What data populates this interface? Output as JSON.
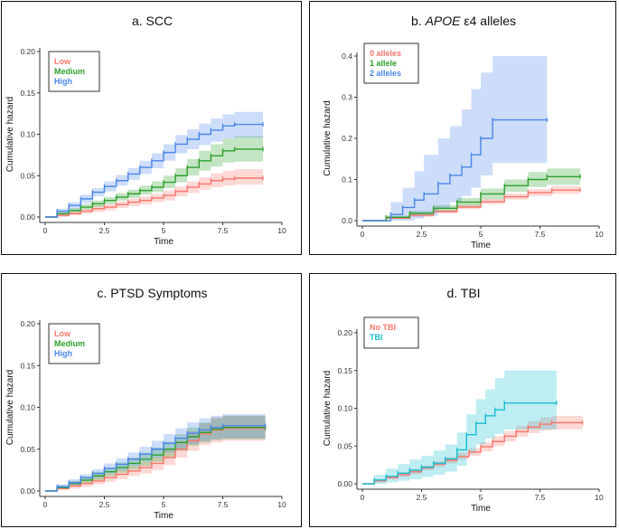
{
  "figure": {
    "chart_data": [
      {
        "type": "line",
        "subtype": "cumulative-hazard-step",
        "title": "a. SCC",
        "xlabel": "Time",
        "ylabel": "Cumulative hazard",
        "xlim": [
          0,
          10
        ],
        "ylim": [
          0,
          0.2
        ],
        "xticks": [
          0,
          2.5,
          5,
          7.5,
          10
        ],
        "xtick_labels": [
          "0",
          "2.5",
          "5",
          "7.5",
          "10"
        ],
        "yticks": [
          0,
          0.05,
          0.1,
          0.15,
          0.2
        ],
        "ytick_labels": [
          "0.00",
          "0.05",
          "0.10",
          "0.15",
          "0.20"
        ],
        "legend": "top-left",
        "grid": false,
        "series": [
          {
            "name": "Low",
            "color": "#f8766d",
            "x": [
              0,
              0.5,
              1,
              1.5,
              2,
              2.5,
              3,
              3.5,
              4,
              4.5,
              5,
              5.5,
              6,
              6.5,
              7,
              7.5,
              8,
              9.2
            ],
            "y": [
              0,
              0.002,
              0.004,
              0.007,
              0.01,
              0.012,
              0.015,
              0.018,
              0.02,
              0.023,
              0.026,
              0.031,
              0.036,
              0.04,
              0.044,
              0.046,
              0.047,
              0.047
            ],
            "ci_low": [
              0,
              0,
              0.002,
              0.004,
              0.006,
              0.008,
              0.011,
              0.013,
              0.015,
              0.018,
              0.02,
              0.025,
              0.029,
              0.033,
              0.036,
              0.038,
              0.039,
              0.039
            ],
            "ci_high": [
              0,
              0.004,
              0.007,
              0.01,
              0.014,
              0.016,
              0.019,
              0.022,
              0.025,
              0.028,
              0.032,
              0.037,
              0.043,
              0.048,
              0.053,
              0.056,
              0.058,
              0.058
            ]
          },
          {
            "name": "Medium",
            "color": "#2ca02c",
            "x": [
              0,
              0.5,
              1,
              1.5,
              2,
              2.5,
              3,
              3.5,
              4,
              4.5,
              5,
              5.5,
              6,
              6.5,
              7,
              7.5,
              8,
              9.2
            ],
            "y": [
              0,
              0.004,
              0.008,
              0.012,
              0.016,
              0.02,
              0.024,
              0.028,
              0.032,
              0.036,
              0.042,
              0.05,
              0.06,
              0.068,
              0.074,
              0.08,
              0.082,
              0.082
            ],
            "ci_low": [
              0,
              0.002,
              0.005,
              0.009,
              0.012,
              0.016,
              0.02,
              0.023,
              0.027,
              0.03,
              0.035,
              0.042,
              0.05,
              0.056,
              0.061,
              0.066,
              0.067,
              0.067
            ],
            "ci_high": [
              0,
              0.006,
              0.011,
              0.016,
              0.02,
              0.024,
              0.029,
              0.033,
              0.038,
              0.043,
              0.05,
              0.059,
              0.07,
              0.08,
              0.088,
              0.095,
              0.098,
              0.098
            ]
          },
          {
            "name": "High",
            "color": "#4a86e8",
            "x": [
              0,
              0.5,
              1,
              1.5,
              2,
              2.5,
              3,
              3.5,
              4,
              4.5,
              5,
              5.5,
              6,
              6.5,
              7,
              7.5,
              8,
              9.2
            ],
            "y": [
              0,
              0.007,
              0.014,
              0.022,
              0.03,
              0.037,
              0.044,
              0.052,
              0.06,
              0.068,
              0.078,
              0.088,
              0.094,
              0.1,
              0.105,
              0.11,
              0.112,
              0.112
            ],
            "ci_low": [
              0,
              0.004,
              0.01,
              0.017,
              0.025,
              0.031,
              0.038,
              0.045,
              0.052,
              0.059,
              0.068,
              0.077,
              0.082,
              0.087,
              0.091,
              0.095,
              0.096,
              0.096
            ],
            "ci_high": [
              0,
              0.01,
              0.018,
              0.027,
              0.035,
              0.043,
              0.051,
              0.059,
              0.068,
              0.077,
              0.088,
              0.099,
              0.106,
              0.113,
              0.119,
              0.124,
              0.127,
              0.127
            ]
          }
        ]
      },
      {
        "type": "line",
        "subtype": "cumulative-hazard-step",
        "title_prefix": "b. ",
        "title_italic": "APOE",
        "title_suffix": " ε4 alleles",
        "xlabel": "Time",
        "ylabel": "Cumulative hazard",
        "xlim": [
          0,
          10
        ],
        "ylim": [
          0,
          0.4
        ],
        "xticks": [
          0,
          2.5,
          5,
          7.5,
          10
        ],
        "xtick_labels": [
          "0",
          "2.5",
          "5",
          "7.5",
          "10"
        ],
        "yticks": [
          0,
          0.1,
          0.2,
          0.3,
          0.4
        ],
        "ytick_labels": [
          "0.0",
          "0.1",
          "0.2",
          "0.3",
          "0.4"
        ],
        "legend": "top-left",
        "grid": false,
        "series": [
          {
            "name": "0 alleles",
            "color": "#f8766d",
            "x": [
              0,
              1,
              2,
              3,
              4,
              5,
              6,
              7,
              8,
              9.2
            ],
            "y": [
              0,
              0.006,
              0.013,
              0.022,
              0.033,
              0.046,
              0.058,
              0.068,
              0.074,
              0.075
            ],
            "ci_low": [
              0,
              0.004,
              0.009,
              0.018,
              0.028,
              0.04,
              0.051,
              0.06,
              0.065,
              0.066
            ],
            "ci_high": [
              0,
              0.008,
              0.017,
              0.027,
              0.039,
              0.053,
              0.066,
              0.077,
              0.084,
              0.085
            ]
          },
          {
            "name": "1 allele",
            "color": "#2ca02c",
            "x": [
              0,
              1,
              2,
              3,
              4,
              5,
              6,
              7,
              7.8,
              9.2
            ],
            "y": [
              0,
              0.008,
              0.018,
              0.03,
              0.045,
              0.065,
              0.085,
              0.1,
              0.107,
              0.107
            ],
            "ci_low": [
              0,
              0.004,
              0.012,
              0.022,
              0.035,
              0.052,
              0.07,
              0.082,
              0.087,
              0.087
            ],
            "ci_high": [
              0,
              0.012,
              0.024,
              0.038,
              0.055,
              0.078,
              0.1,
              0.118,
              0.127,
              0.127
            ]
          },
          {
            "name": "2 alleles",
            "color": "#4a86e8",
            "x": [
              0,
              1.2,
              1.7,
              2.2,
              2.6,
              3.2,
              3.7,
              4.2,
              4.6,
              5.0,
              5.5,
              7.8
            ],
            "y": [
              0,
              0.015,
              0.032,
              0.05,
              0.065,
              0.09,
              0.11,
              0.13,
              0.16,
              0.2,
              0.245,
              0.245
            ],
            "ci_low": [
              0,
              0,
              0,
              0.005,
              0.012,
              0.03,
              0.045,
              0.06,
              0.08,
              0.11,
              0.14,
              0.14
            ],
            "ci_high": [
              0,
              0.045,
              0.08,
              0.12,
              0.16,
              0.2,
              0.23,
              0.27,
              0.32,
              0.36,
              0.4,
              0.4
            ]
          }
        ]
      },
      {
        "type": "line",
        "subtype": "cumulative-hazard-step",
        "title": "c. PTSD Symptoms",
        "xlabel": "Time",
        "ylabel": "Cumulative hazard",
        "xlim": [
          0,
          10
        ],
        "ylim": [
          0,
          0.2
        ],
        "xticks": [
          0,
          2.5,
          5,
          7.5,
          10
        ],
        "xtick_labels": [
          "0",
          "2.5",
          "5",
          "7.5",
          "10"
        ],
        "yticks": [
          0,
          0.05,
          0.1,
          0.15,
          0.2
        ],
        "ytick_labels": [
          "0.00",
          "0.05",
          "0.10",
          "0.15",
          "0.20"
        ],
        "legend": "top-left",
        "grid": false,
        "series": [
          {
            "name": "Low",
            "color": "#f8766d",
            "x": [
              0,
              0.5,
              1,
              1.5,
              2,
              2.5,
              3,
              3.5,
              4,
              4.5,
              5,
              5.5,
              6,
              6.5,
              7,
              7.5,
              9.3
            ],
            "y": [
              0,
              0.003,
              0.006,
              0.009,
              0.012,
              0.016,
              0.02,
              0.024,
              0.028,
              0.033,
              0.04,
              0.05,
              0.06,
              0.068,
              0.073,
              0.075,
              0.075
            ],
            "ci_low": [
              0,
              0.001,
              0.003,
              0.005,
              0.008,
              0.011,
              0.014,
              0.018,
              0.021,
              0.025,
              0.031,
              0.04,
              0.048,
              0.055,
              0.058,
              0.06,
              0.06
            ],
            "ci_high": [
              0,
              0.006,
              0.009,
              0.013,
              0.017,
              0.021,
              0.026,
              0.03,
              0.035,
              0.041,
              0.049,
              0.06,
              0.072,
              0.081,
              0.088,
              0.09,
              0.09
            ]
          },
          {
            "name": "Medium",
            "color": "#2ca02c",
            "x": [
              0,
              0.5,
              1,
              1.5,
              2,
              2.5,
              3,
              3.5,
              4,
              4.5,
              5,
              5.5,
              6,
              6.5,
              7,
              7.5,
              9.3
            ],
            "y": [
              0,
              0.004,
              0.009,
              0.013,
              0.018,
              0.023,
              0.028,
              0.033,
              0.038,
              0.043,
              0.05,
              0.058,
              0.065,
              0.07,
              0.074,
              0.076,
              0.076
            ],
            "ci_low": [
              0,
              0.002,
              0.006,
              0.009,
              0.013,
              0.018,
              0.022,
              0.026,
              0.03,
              0.035,
              0.041,
              0.048,
              0.054,
              0.058,
              0.061,
              0.062,
              0.062
            ],
            "ci_high": [
              0,
              0.007,
              0.012,
              0.017,
              0.023,
              0.028,
              0.034,
              0.04,
              0.046,
              0.052,
              0.059,
              0.068,
              0.076,
              0.082,
              0.087,
              0.09,
              0.09
            ]
          },
          {
            "name": "High",
            "color": "#4a86e8",
            "x": [
              0,
              0.5,
              1,
              1.5,
              2,
              2.5,
              3,
              3.5,
              4,
              4.5,
              5,
              5.5,
              6,
              6.5,
              7,
              7.5,
              9.3
            ],
            "y": [
              0,
              0.005,
              0.01,
              0.016,
              0.021,
              0.027,
              0.032,
              0.038,
              0.044,
              0.05,
              0.057,
              0.063,
              0.069,
              0.073,
              0.076,
              0.078,
              0.078
            ],
            "ci_low": [
              0,
              0.003,
              0.007,
              0.012,
              0.016,
              0.021,
              0.025,
              0.03,
              0.035,
              0.04,
              0.046,
              0.051,
              0.056,
              0.06,
              0.062,
              0.063,
              0.063
            ],
            "ci_high": [
              0,
              0.008,
              0.014,
              0.02,
              0.026,
              0.033,
              0.039,
              0.046,
              0.053,
              0.06,
              0.068,
              0.075,
              0.082,
              0.087,
              0.09,
              0.092,
              0.092
            ]
          }
        ]
      },
      {
        "type": "line",
        "subtype": "cumulative-hazard-step",
        "title": "d. TBI",
        "xlabel": "Time",
        "ylabel": "Cumulative hazard",
        "xlim": [
          0,
          10
        ],
        "ylim": [
          0,
          0.2
        ],
        "xticks": [
          0,
          2.5,
          5,
          7.5,
          10
        ],
        "xtick_labels": [
          "0",
          "2.5",
          "5",
          "7.5",
          "10"
        ],
        "yticks": [
          0,
          0.05,
          0.1,
          0.15,
          0.2
        ],
        "ytick_labels": [
          "0.00",
          "0.05",
          "0.10",
          "0.15",
          "0.20"
        ],
        "legend": "top-left",
        "grid": false,
        "series": [
          {
            "name": "No TBI",
            "color": "#f8766d",
            "x": [
              0,
              0.5,
              1,
              1.5,
              2,
              2.5,
              3,
              3.5,
              4,
              4.5,
              5,
              5.5,
              6,
              6.5,
              7,
              7.5,
              8,
              9.3
            ],
            "y": [
              0,
              0.004,
              0.008,
              0.012,
              0.016,
              0.021,
              0.026,
              0.031,
              0.036,
              0.042,
              0.049,
              0.056,
              0.063,
              0.069,
              0.075,
              0.079,
              0.081,
              0.081
            ],
            "ci_low": [
              0,
              0.002,
              0.006,
              0.009,
              0.013,
              0.018,
              0.022,
              0.027,
              0.032,
              0.037,
              0.043,
              0.05,
              0.056,
              0.062,
              0.067,
              0.071,
              0.072,
              0.072
            ],
            "ci_high": [
              0,
              0.006,
              0.01,
              0.015,
              0.019,
              0.024,
              0.03,
              0.035,
              0.041,
              0.047,
              0.055,
              0.063,
              0.07,
              0.077,
              0.083,
              0.088,
              0.09,
              0.09
            ]
          },
          {
            "name": "TBI",
            "color": "#17becf",
            "x": [
              0,
              0.5,
              1,
              1.5,
              2,
              2.5,
              3,
              3.5,
              4,
              4.4,
              4.8,
              5.2,
              5.6,
              6,
              8.2
            ],
            "y": [
              0,
              0.005,
              0.01,
              0.014,
              0.018,
              0.022,
              0.027,
              0.033,
              0.045,
              0.065,
              0.08,
              0.09,
              0.098,
              0.107,
              0.107
            ],
            "ci_low": [
              0,
              0,
              0.002,
              0.004,
              0.006,
              0.009,
              0.012,
              0.016,
              0.024,
              0.04,
              0.052,
              0.06,
              0.066,
              0.072,
              0.072
            ],
            "ci_high": [
              0,
              0.012,
              0.02,
              0.026,
              0.032,
              0.037,
              0.044,
              0.052,
              0.068,
              0.092,
              0.112,
              0.125,
              0.14,
              0.15,
              0.15
            ]
          }
        ]
      }
    ]
  }
}
